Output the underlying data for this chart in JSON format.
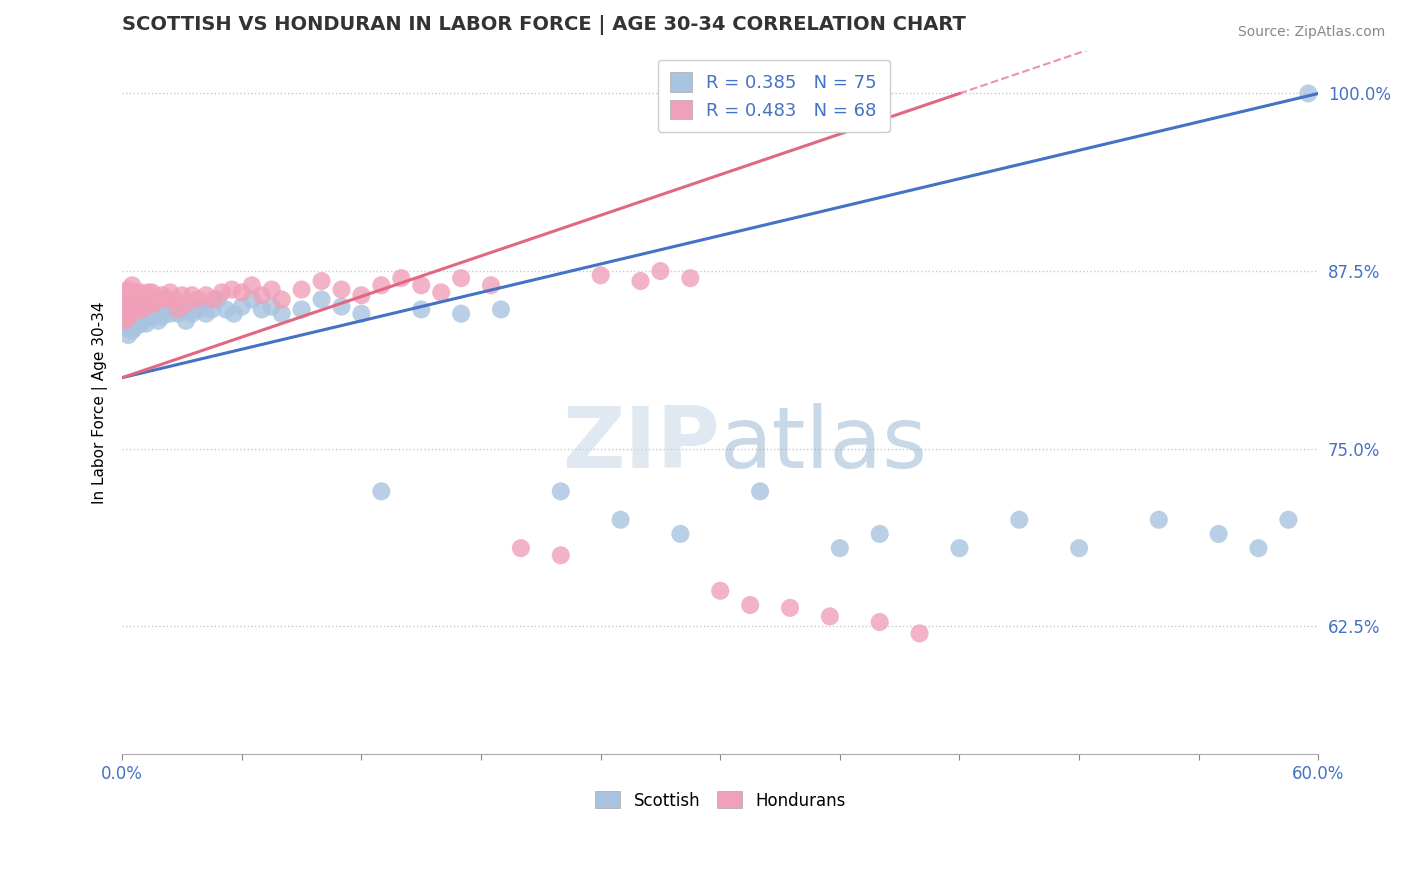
{
  "title": "SCOTTISH VS HONDURAN IN LABOR FORCE | AGE 30-34 CORRELATION CHART",
  "source": "Source: ZipAtlas.com",
  "ylabel": "In Labor Force | Age 30-34",
  "xlim": [
    0.0,
    0.6
  ],
  "ylim": [
    0.535,
    1.03
  ],
  "yticks": [
    0.625,
    0.75,
    0.875,
    1.0
  ],
  "yticklabels": [
    "62.5%",
    "75.0%",
    "87.5%",
    "100.0%"
  ],
  "blue_R": 0.385,
  "blue_N": 75,
  "pink_R": 0.483,
  "pink_N": 68,
  "blue_color": "#a8c4e0",
  "pink_color": "#f0a0b8",
  "blue_line_color": "#4472c4",
  "pink_line_color": "#e06880",
  "legend_R_color": "#4472c4",
  "blue_x": [
    0.001,
    0.002,
    0.002,
    0.003,
    0.003,
    0.003,
    0.004,
    0.004,
    0.004,
    0.005,
    0.005,
    0.005,
    0.006,
    0.006,
    0.006,
    0.007,
    0.007,
    0.008,
    0.008,
    0.009,
    0.009,
    0.01,
    0.01,
    0.011,
    0.011,
    0.012,
    0.012,
    0.013,
    0.014,
    0.015,
    0.016,
    0.017,
    0.018,
    0.02,
    0.022,
    0.024,
    0.026,
    0.028,
    0.03,
    0.032,
    0.035,
    0.038,
    0.04,
    0.042,
    0.045,
    0.048,
    0.052,
    0.056,
    0.06,
    0.065,
    0.07,
    0.075,
    0.08,
    0.09,
    0.1,
    0.11,
    0.12,
    0.13,
    0.15,
    0.17,
    0.19,
    0.22,
    0.25,
    0.28,
    0.32,
    0.36,
    0.38,
    0.42,
    0.45,
    0.48,
    0.52,
    0.55,
    0.57,
    0.585,
    0.595
  ],
  "blue_y": [
    0.835,
    0.84,
    0.845,
    0.83,
    0.838,
    0.845,
    0.835,
    0.842,
    0.85,
    0.833,
    0.84,
    0.848,
    0.835,
    0.843,
    0.85,
    0.84,
    0.848,
    0.837,
    0.845,
    0.838,
    0.845,
    0.84,
    0.847,
    0.842,
    0.85,
    0.838,
    0.845,
    0.843,
    0.848,
    0.842,
    0.848,
    0.845,
    0.84,
    0.843,
    0.848,
    0.845,
    0.85,
    0.845,
    0.848,
    0.84,
    0.845,
    0.848,
    0.85,
    0.845,
    0.848,
    0.855,
    0.848,
    0.845,
    0.85,
    0.855,
    0.848,
    0.85,
    0.845,
    0.848,
    0.855,
    0.85,
    0.845,
    0.72,
    0.848,
    0.845,
    0.848,
    0.72,
    0.7,
    0.69,
    0.72,
    0.68,
    0.69,
    0.68,
    0.7,
    0.68,
    0.7,
    0.69,
    0.68,
    0.7,
    1.0
  ],
  "pink_x": [
    0.001,
    0.002,
    0.002,
    0.003,
    0.003,
    0.003,
    0.004,
    0.004,
    0.005,
    0.005,
    0.005,
    0.006,
    0.006,
    0.007,
    0.007,
    0.008,
    0.008,
    0.009,
    0.009,
    0.01,
    0.01,
    0.011,
    0.012,
    0.013,
    0.014,
    0.015,
    0.016,
    0.018,
    0.02,
    0.022,
    0.024,
    0.026,
    0.028,
    0.03,
    0.032,
    0.035,
    0.038,
    0.042,
    0.046,
    0.05,
    0.055,
    0.06,
    0.065,
    0.07,
    0.075,
    0.08,
    0.09,
    0.1,
    0.11,
    0.12,
    0.13,
    0.14,
    0.15,
    0.16,
    0.17,
    0.185,
    0.2,
    0.22,
    0.24,
    0.26,
    0.27,
    0.285,
    0.3,
    0.315,
    0.335,
    0.355,
    0.38,
    0.4
  ],
  "pink_y": [
    0.84,
    0.85,
    0.86,
    0.842,
    0.852,
    0.862,
    0.848,
    0.858,
    0.845,
    0.855,
    0.865,
    0.848,
    0.858,
    0.85,
    0.86,
    0.848,
    0.858,
    0.85,
    0.86,
    0.848,
    0.858,
    0.85,
    0.855,
    0.86,
    0.852,
    0.86,
    0.852,
    0.855,
    0.858,
    0.855,
    0.86,
    0.855,
    0.848,
    0.858,
    0.852,
    0.858,
    0.855,
    0.858,
    0.855,
    0.86,
    0.862,
    0.86,
    0.865,
    0.858,
    0.862,
    0.855,
    0.862,
    0.868,
    0.862,
    0.858,
    0.865,
    0.87,
    0.865,
    0.86,
    0.87,
    0.865,
    0.68,
    0.675,
    0.872,
    0.868,
    0.875,
    0.87,
    0.65,
    0.64,
    0.638,
    0.632,
    0.628,
    0.62
  ],
  "blue_line_x0": 0.0,
  "blue_line_y0": 0.8,
  "blue_line_x1": 0.6,
  "blue_line_y1": 1.0,
  "pink_line_x0": 0.0,
  "pink_line_y0": 0.8,
  "pink_line_x1": 0.42,
  "pink_line_y1": 1.0
}
